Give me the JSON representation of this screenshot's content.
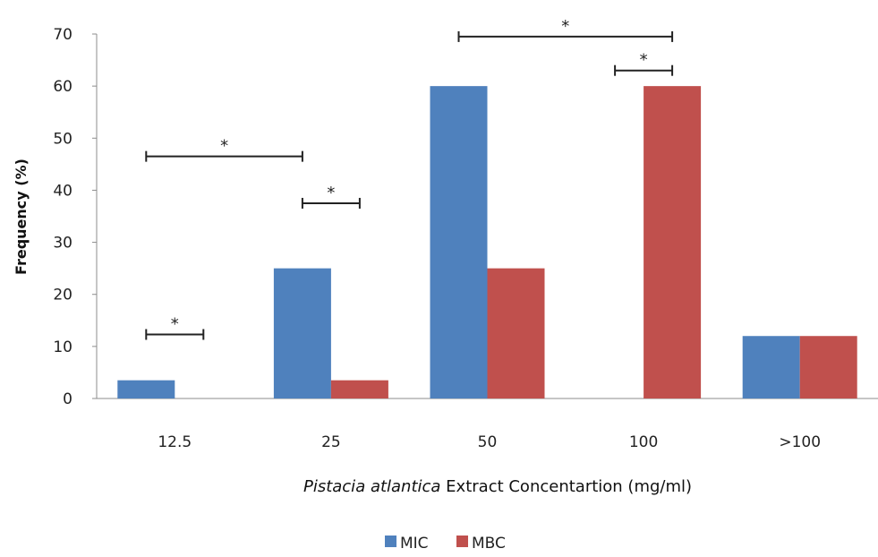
{
  "chart_data": {
    "type": "bar",
    "categories": [
      "12.5",
      "25",
      "50",
      "100",
      ">100"
    ],
    "series": [
      {
        "name": "MIC",
        "values": [
          3.5,
          25,
          60,
          0,
          12
        ],
        "color": "#4f81bd"
      },
      {
        "name": "MBC",
        "values": [
          0,
          3.5,
          25,
          60,
          12
        ],
        "color": "#c0504d"
      }
    ],
    "ylabel": "Frequency (%)",
    "xlabel_italic": "Pistacia atlantica",
    "xlabel_rest": " Extract Concentartion (mg/ml)",
    "ylim": [
      0,
      70
    ],
    "yticks": [
      "0",
      "10",
      "20",
      "30",
      "40",
      "50",
      "60",
      "70"
    ],
    "legend_position": "bottom",
    "grid": false,
    "annotations": [
      {
        "label": "*",
        "from": "12.5 MIC",
        "to": "12.5 MBC",
        "level": 12.3
      },
      {
        "label": "*",
        "from": "12.5 MIC",
        "to": "25 MIC",
        "level": 46.5
      },
      {
        "label": "*",
        "from": "25 MIC",
        "to": "25 MBC",
        "level": 37.5
      },
      {
        "label": "*",
        "from": "50 MIC",
        "to": "100 MBC",
        "level": 69.5
      },
      {
        "label": "*",
        "from": "100 MIC",
        "to": "100 MBC",
        "level": 63.0
      }
    ]
  }
}
